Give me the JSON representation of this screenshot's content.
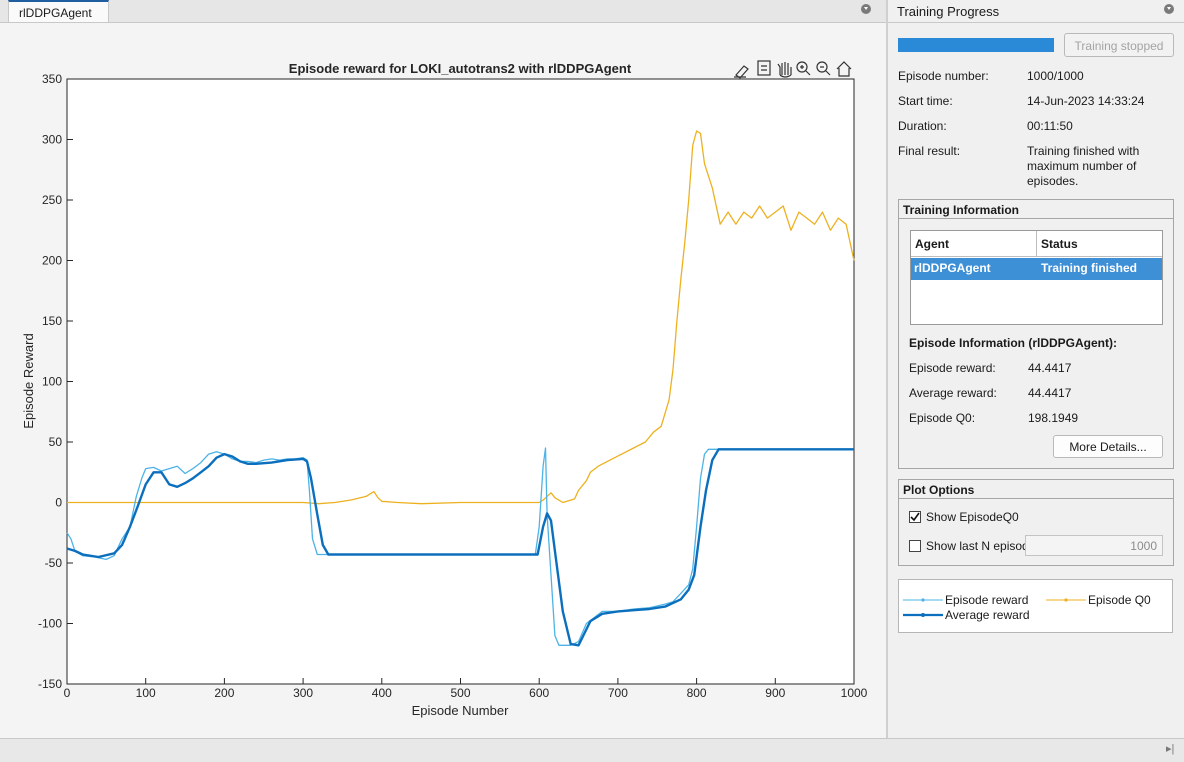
{
  "tab": {
    "label": "rlDDPGAgent"
  },
  "toolbar_icons": [
    "brush-icon",
    "datatip-icon",
    "pan-icon",
    "zoom-in-icon",
    "zoom-out-icon",
    "home-icon"
  ],
  "plot": {
    "title": "Episode reward for LOKI_autotrans2 with rlDDPGAgent",
    "xlabel": "Episode Number",
    "ylabel": "Episode Reward"
  },
  "chart_data": {
    "type": "line",
    "title": "Episode reward for LOKI_autotrans2 with rlDDPGAgent",
    "xlabel": "Episode Number",
    "ylabel": "Episode Reward",
    "xlim": [
      0,
      1000
    ],
    "ylim": [
      -150,
      350
    ],
    "x_ticks": [
      0,
      100,
      200,
      300,
      400,
      500,
      600,
      700,
      800,
      900,
      1000
    ],
    "y_ticks": [
      -150,
      -100,
      -50,
      0,
      50,
      100,
      150,
      200,
      250,
      300,
      350
    ],
    "grid": false,
    "colors": {
      "episode_reward": "#4db3e6",
      "average_reward": "#0b6fbd",
      "episode_q0": "#edb120"
    },
    "series": [
      {
        "name": "Episode reward",
        "points": [
          [
            0,
            -25
          ],
          [
            5,
            -30
          ],
          [
            10,
            -40
          ],
          [
            20,
            -44
          ],
          [
            35,
            -45
          ],
          [
            50,
            -47
          ],
          [
            60,
            -44
          ],
          [
            70,
            -30
          ],
          [
            80,
            -20
          ],
          [
            88,
            5
          ],
          [
            95,
            20
          ],
          [
            100,
            28
          ],
          [
            110,
            29
          ],
          [
            120,
            26
          ],
          [
            130,
            28
          ],
          [
            140,
            30
          ],
          [
            150,
            24
          ],
          [
            160,
            28
          ],
          [
            170,
            33
          ],
          [
            180,
            40
          ],
          [
            190,
            42
          ],
          [
            200,
            40
          ],
          [
            210,
            36
          ],
          [
            220,
            34
          ],
          [
            230,
            34
          ],
          [
            240,
            33
          ],
          [
            250,
            35
          ],
          [
            260,
            36
          ],
          [
            270,
            35
          ],
          [
            280,
            36
          ],
          [
            290,
            36
          ],
          [
            300,
            37
          ],
          [
            305,
            35
          ],
          [
            308,
            10
          ],
          [
            312,
            -30
          ],
          [
            318,
            -43
          ],
          [
            340,
            -43
          ],
          [
            400,
            -43
          ],
          [
            500,
            -43
          ],
          [
            595,
            -43
          ],
          [
            600,
            -20
          ],
          [
            605,
            30
          ],
          [
            608,
            45
          ],
          [
            610,
            -10
          ],
          [
            615,
            -60
          ],
          [
            620,
            -110
          ],
          [
            625,
            -118
          ],
          [
            640,
            -118
          ],
          [
            650,
            -115
          ],
          [
            660,
            -100
          ],
          [
            670,
            -95
          ],
          [
            680,
            -90
          ],
          [
            700,
            -90
          ],
          [
            720,
            -88
          ],
          [
            740,
            -87
          ],
          [
            760,
            -84
          ],
          [
            770,
            -82
          ],
          [
            780,
            -75
          ],
          [
            790,
            -68
          ],
          [
            795,
            -55
          ],
          [
            800,
            -20
          ],
          [
            805,
            20
          ],
          [
            810,
            40
          ],
          [
            815,
            44
          ],
          [
            830,
            44
          ],
          [
            900,
            44
          ],
          [
            1000,
            44
          ]
        ]
      },
      {
        "name": "Average reward",
        "points": [
          [
            0,
            -38
          ],
          [
            10,
            -40
          ],
          [
            20,
            -43
          ],
          [
            40,
            -45
          ],
          [
            60,
            -42
          ],
          [
            70,
            -35
          ],
          [
            80,
            -20
          ],
          [
            90,
            -3
          ],
          [
            100,
            15
          ],
          [
            110,
            25
          ],
          [
            120,
            25
          ],
          [
            130,
            15
          ],
          [
            140,
            13
          ],
          [
            150,
            16
          ],
          [
            160,
            20
          ],
          [
            170,
            25
          ],
          [
            180,
            30
          ],
          [
            190,
            37
          ],
          [
            200,
            40
          ],
          [
            210,
            38
          ],
          [
            220,
            34
          ],
          [
            230,
            32
          ],
          [
            240,
            32
          ],
          [
            260,
            33
          ],
          [
            280,
            35
          ],
          [
            300,
            36
          ],
          [
            305,
            34
          ],
          [
            310,
            20
          ],
          [
            318,
            -10
          ],
          [
            325,
            -35
          ],
          [
            332,
            -43
          ],
          [
            340,
            -43
          ],
          [
            400,
            -43
          ],
          [
            500,
            -43
          ],
          [
            598,
            -43
          ],
          [
            605,
            -20
          ],
          [
            610,
            -9
          ],
          [
            615,
            -15
          ],
          [
            620,
            -40
          ],
          [
            630,
            -90
          ],
          [
            640,
            -117
          ],
          [
            650,
            -118
          ],
          [
            656,
            -110
          ],
          [
            665,
            -98
          ],
          [
            680,
            -92
          ],
          [
            700,
            -90
          ],
          [
            720,
            -89
          ],
          [
            740,
            -88
          ],
          [
            760,
            -86
          ],
          [
            780,
            -80
          ],
          [
            790,
            -72
          ],
          [
            797,
            -60
          ],
          [
            805,
            -20
          ],
          [
            812,
            10
          ],
          [
            820,
            35
          ],
          [
            828,
            44
          ],
          [
            900,
            44
          ],
          [
            1000,
            44
          ]
        ]
      },
      {
        "name": "Episode Q0",
        "points": [
          [
            0,
            0
          ],
          [
            100,
            0
          ],
          [
            200,
            0
          ],
          [
            300,
            0
          ],
          [
            320,
            -1
          ],
          [
            340,
            0
          ],
          [
            360,
            2
          ],
          [
            380,
            5
          ],
          [
            390,
            9
          ],
          [
            395,
            4
          ],
          [
            400,
            1
          ],
          [
            420,
            0
          ],
          [
            450,
            -1
          ],
          [
            500,
            0
          ],
          [
            550,
            0
          ],
          [
            600,
            0
          ],
          [
            605,
            2
          ],
          [
            615,
            8
          ],
          [
            620,
            4
          ],
          [
            630,
            0
          ],
          [
            640,
            2
          ],
          [
            645,
            3
          ],
          [
            650,
            10
          ],
          [
            660,
            18
          ],
          [
            665,
            25
          ],
          [
            675,
            30
          ],
          [
            690,
            35
          ],
          [
            705,
            40
          ],
          [
            720,
            45
          ],
          [
            735,
            50
          ],
          [
            745,
            58
          ],
          [
            755,
            63
          ],
          [
            765,
            85
          ],
          [
            770,
            110
          ],
          [
            775,
            150
          ],
          [
            780,
            185
          ],
          [
            785,
            215
          ],
          [
            790,
            250
          ],
          [
            795,
            295
          ],
          [
            800,
            307
          ],
          [
            805,
            305
          ],
          [
            810,
            280
          ],
          [
            820,
            260
          ],
          [
            830,
            230
          ],
          [
            840,
            240
          ],
          [
            850,
            230
          ],
          [
            860,
            240
          ],
          [
            870,
            235
          ],
          [
            880,
            245
          ],
          [
            890,
            235
          ],
          [
            900,
            240
          ],
          [
            910,
            245
          ],
          [
            920,
            225
          ],
          [
            930,
            240
          ],
          [
            940,
            235
          ],
          [
            950,
            230
          ],
          [
            960,
            240
          ],
          [
            970,
            225
          ],
          [
            980,
            235
          ],
          [
            990,
            230
          ],
          [
            1000,
            200
          ]
        ]
      }
    ]
  },
  "right_panel": {
    "header": "Training Progress",
    "stop_button": "Training stopped",
    "progress_fraction": 1.0,
    "rows": [
      {
        "label": "Episode number:",
        "value": "1000/1000"
      },
      {
        "label": "Start time:",
        "value": "14-Jun-2023 14:33:24"
      },
      {
        "label": "Duration:",
        "value": "00:11:50"
      }
    ],
    "final_result_label": "Final result:",
    "final_result_lines": [
      "Training finished with",
      "maximum number of",
      "episodes."
    ],
    "training_info": {
      "title": "Training Information",
      "col_agent": "Agent",
      "col_status": "Status",
      "row_agent": "rlDDPGAgent",
      "row_status": "Training finished"
    },
    "episode_info": {
      "title": "Episode Information (rlDDPGAgent):",
      "rows": [
        {
          "label": "Episode reward:",
          "value": "44.4417"
        },
        {
          "label": "Average reward:",
          "value": "44.4417"
        },
        {
          "label": "Episode Q0:",
          "value": "198.1949"
        }
      ],
      "more_button": "More Details..."
    },
    "plot_options": {
      "title": "Plot Options",
      "show_q0_label": "Show EpisodeQ0",
      "show_q0_checked": true,
      "show_last_n_label": "Show last N episodes",
      "show_last_n_checked": false,
      "last_n_value": "1000"
    },
    "legend": {
      "episode_reward": "Episode reward",
      "episode_q0": "Episode Q0",
      "average_reward": "Average reward"
    }
  }
}
